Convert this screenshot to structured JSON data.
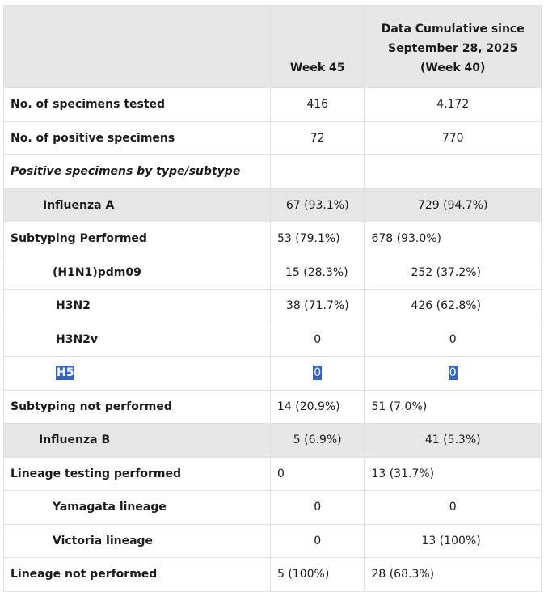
{
  "header": {
    "col1": "",
    "col2": "Week 45",
    "col3": "Data Cumulative since September 28, 2025 (Week 40)"
  },
  "rows": [
    {
      "label": "No. of specimens tested",
      "week": "416",
      "cum": "4,172"
    },
    {
      "label": "No. of positive specimens",
      "week": "72",
      "cum": "770"
    },
    {
      "label": "Positive specimens by type/subtype",
      "week": "",
      "cum": ""
    },
    {
      "label": "Influenza A",
      "week": "67 (93.1%)",
      "cum": "729 (94.7%)"
    },
    {
      "label": "Subtyping Performed",
      "week": "53 (79.1%)",
      "cum": "678 (93.0%)"
    },
    {
      "label": "(H1N1)pdm09",
      "week": "15 (28.3%)",
      "cum": "252 (37.2%)"
    },
    {
      "label": "H3N2",
      "week": "38 (71.7%)",
      "cum": "426 (62.8%)"
    },
    {
      "label": "H3N2v",
      "week": "0",
      "cum": "0"
    },
    {
      "label": "H5",
      "week": "0",
      "cum": "0"
    },
    {
      "label": "Subtyping not performed",
      "week": "14 (20.9%)",
      "cum": "51 (7.0%)"
    },
    {
      "label": "Influenza B",
      "week": "5 (6.9%)",
      "cum": "41 (5.3%)"
    },
    {
      "label": "Lineage testing performed",
      "week": "0",
      "cum": "13 (31.7%)"
    },
    {
      "label": "Yamagata lineage",
      "week": "0",
      "cum": "0"
    },
    {
      "label": "Victoria lineage",
      "week": "0",
      "cum": "13 (100%)"
    },
    {
      "label": "Lineage not performed",
      "week": "5 (100%)",
      "cum": "28 (68.3%)"
    }
  ]
}
